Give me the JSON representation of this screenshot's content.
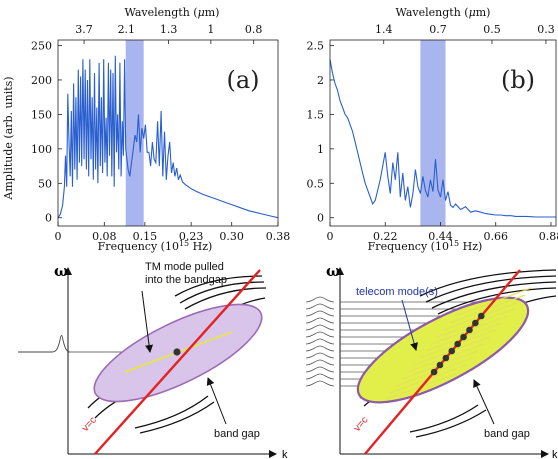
{
  "colors": {
    "curve": "#2a5fd0",
    "gap_band": "#a9b5ee",
    "light_line": "#e32222",
    "ellipse_a": "#d9c5ea",
    "ellipse_a_edge": "#9d6ab5",
    "ellipse_b": "#e2ef4a",
    "ellipse_b_edge": "#8c5aa8",
    "highlight": "#e3e35a",
    "dots": "#333333",
    "annotation_blue": "#2233aa"
  },
  "chart_data": [
    {
      "type": "line",
      "panel_label": "(a)",
      "xlabel": "Frequency (10",
      "xlabel_sup": "15",
      "xlabel_end": " Hz)",
      "ylabel": "Amplitude (arb. units)",
      "top_label_pre": "Wavelength (",
      "top_label_mu": "μ",
      "top_label_post": "m)",
      "xlim": [
        0,
        0.38
      ],
      "ylim": [
        -12,
        258
      ],
      "xticks": [
        "0",
        "0.08",
        "0.15",
        "0.23",
        "0.30",
        "0.38"
      ],
      "xtick_values": [
        0,
        0.08,
        0.15,
        0.23,
        0.3,
        0.38
      ],
      "yticks": [
        "0",
        "50",
        "100",
        "150",
        "200",
        "250"
      ],
      "ytick_values": [
        0,
        50,
        100,
        150,
        200,
        250
      ],
      "top_ticks": [
        "3.7",
        "2.1",
        "1.3",
        "1",
        "0.8"
      ],
      "top_tick_positions": [
        0.045,
        0.118,
        0.191,
        0.264,
        0.338
      ],
      "band": [
        0.117,
        0.148
      ],
      "x": [
        0.0,
        0.004,
        0.008,
        0.011,
        0.013,
        0.015,
        0.017,
        0.019,
        0.021,
        0.023,
        0.025,
        0.027,
        0.029,
        0.031,
        0.033,
        0.035,
        0.037,
        0.039,
        0.041,
        0.043,
        0.045,
        0.047,
        0.049,
        0.051,
        0.053,
        0.055,
        0.057,
        0.059,
        0.061,
        0.063,
        0.065,
        0.067,
        0.069,
        0.071,
        0.073,
        0.075,
        0.077,
        0.079,
        0.081,
        0.083,
        0.085,
        0.087,
        0.089,
        0.091,
        0.093,
        0.095,
        0.097,
        0.099,
        0.101,
        0.103,
        0.105,
        0.107,
        0.109,
        0.111,
        0.113,
        0.115,
        0.117,
        0.119,
        0.121,
        0.124,
        0.127,
        0.13,
        0.133,
        0.136,
        0.139,
        0.142,
        0.145,
        0.148,
        0.151,
        0.154,
        0.157,
        0.16,
        0.163,
        0.166,
        0.169,
        0.172,
        0.175,
        0.178,
        0.181,
        0.184,
        0.187,
        0.19,
        0.193,
        0.196,
        0.199,
        0.202,
        0.205,
        0.208,
        0.211,
        0.215,
        0.22,
        0.225,
        0.23,
        0.24,
        0.25,
        0.26,
        0.27,
        0.28,
        0.29,
        0.3,
        0.31,
        0.32,
        0.33,
        0.34,
        0.35,
        0.36,
        0.37,
        0.38
      ],
      "values": [
        0,
        5,
        18,
        45,
        90,
        45,
        180,
        110,
        60,
        155,
        45,
        195,
        70,
        175,
        55,
        215,
        80,
        205,
        75,
        230,
        85,
        215,
        70,
        200,
        60,
        230,
        85,
        175,
        55,
        210,
        70,
        160,
        50,
        225,
        75,
        175,
        65,
        230,
        80,
        145,
        60,
        225,
        90,
        215,
        60,
        210,
        45,
        235,
        95,
        150,
        70,
        225,
        60,
        140,
        90,
        230,
        100,
        85,
        70,
        60,
        80,
        100,
        120,
        110,
        150,
        95,
        130,
        115,
        135,
        95,
        95,
        75,
        110,
        85,
        80,
        140,
        75,
        155,
        60,
        125,
        55,
        90,
        110,
        65,
        80,
        60,
        72,
        55,
        62,
        52,
        48,
        45,
        42,
        38,
        34,
        31,
        28,
        25,
        22,
        19,
        16,
        13,
        10,
        8,
        6,
        4,
        2,
        0
      ]
    },
    {
      "type": "line",
      "panel_label": "(b)",
      "xlabel": "Frequency (10",
      "xlabel_sup": "15",
      "xlabel_end": " Hz)",
      "ylabel": "",
      "top_label_pre": "Wavelength (",
      "top_label_mu": "μ",
      "top_label_post": "m)",
      "xlim": [
        0,
        0.9
      ],
      "ylim": [
        -0.12,
        2.58
      ],
      "xticks": [
        "0",
        "0.22",
        "0.44",
        "0.66",
        "0.88"
      ],
      "xtick_values": [
        0,
        0.22,
        0.44,
        0.66,
        0.88
      ],
      "yticks": [
        "0",
        "0.5",
        "1",
        "1.5",
        "2",
        "2.5"
      ],
      "ytick_values": [
        0,
        0.5,
        1,
        1.5,
        2,
        2.5
      ],
      "top_ticks": [
        "1.4",
        "0.7",
        "0.5",
        "0.3"
      ],
      "top_tick_positions": [
        0.214,
        0.43,
        0.645,
        0.86
      ],
      "band": [
        0.36,
        0.46
      ],
      "x": [
        0.0,
        0.01,
        0.02,
        0.03,
        0.04,
        0.05,
        0.06,
        0.07,
        0.08,
        0.09,
        0.1,
        0.11,
        0.12,
        0.13,
        0.14,
        0.15,
        0.16,
        0.17,
        0.18,
        0.19,
        0.2,
        0.21,
        0.22,
        0.23,
        0.24,
        0.25,
        0.26,
        0.27,
        0.28,
        0.29,
        0.3,
        0.31,
        0.32,
        0.33,
        0.34,
        0.35,
        0.36,
        0.37,
        0.38,
        0.39,
        0.4,
        0.41,
        0.42,
        0.43,
        0.44,
        0.45,
        0.46,
        0.47,
        0.48,
        0.49,
        0.5,
        0.52,
        0.54,
        0.56,
        0.58,
        0.6,
        0.62,
        0.64,
        0.66,
        0.68,
        0.7,
        0.72,
        0.74,
        0.76,
        0.78,
        0.8,
        0.82,
        0.84,
        0.86,
        0.88,
        0.9
      ],
      "values": [
        2.3,
        2.1,
        1.95,
        1.85,
        1.7,
        1.6,
        1.5,
        1.45,
        1.35,
        1.25,
        1.1,
        0.95,
        0.8,
        0.65,
        0.5,
        0.4,
        0.3,
        0.2,
        0.25,
        0.4,
        0.55,
        0.75,
        0.95,
        0.6,
        0.35,
        0.8,
        0.55,
        0.95,
        0.3,
        0.65,
        0.25,
        0.45,
        0.15,
        0.35,
        0.7,
        0.45,
        0.35,
        0.6,
        0.4,
        0.3,
        0.55,
        0.38,
        0.85,
        0.4,
        0.3,
        0.55,
        0.25,
        0.38,
        0.18,
        0.15,
        0.2,
        0.12,
        0.16,
        0.08,
        0.1,
        0.08,
        0.06,
        0.05,
        0.04,
        0.04,
        0.03,
        0.03,
        0.02,
        0.02,
        0.02,
        0.015,
        0.01,
        0.01,
        0.01,
        0.01,
        0.01
      ]
    }
  ],
  "diagrams": {
    "left": {
      "omega": "ω",
      "k": "k",
      "annotation": "TM mode pulled\ninto the bandgap",
      "band_gap": "band gap",
      "light_line": "v=c"
    },
    "right": {
      "omega": "ω",
      "k": "k",
      "annotation": "telecom mode(s)",
      "band_gap": "band gap",
      "light_line": "v=c"
    }
  }
}
